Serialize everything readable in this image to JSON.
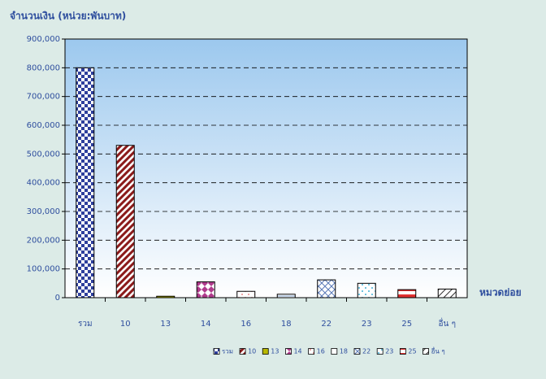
{
  "chart_data": {
    "type": "bar",
    "y_axis_label": "จำนวนเงิน (หน่วย:พันบาท)",
    "x_axis_label": "หมวดย่อย",
    "categories": [
      "รวม",
      "10",
      "13",
      "14",
      "16",
      "18",
      "22",
      "23",
      "25",
      "อื่น ๆ"
    ],
    "values": [
      800000,
      530000,
      5000,
      55000,
      22000,
      12000,
      62000,
      50000,
      28000,
      30000
    ],
    "colors": [
      "#2e3f9c",
      "#8b1a1a",
      "#b8b800",
      "#b03a8c",
      "#e88a8a",
      "#7fa3cc",
      "#5a7ab8",
      "#3fb0d6",
      "#e03030",
      "#333333"
    ],
    "ylim": [
      0,
      900000
    ],
    "yticks": [
      0,
      {
        "value": 100000,
        "label": "100,000"
      },
      {
        "value": 200000,
        "label": "200,000"
      },
      {
        "value": 300000,
        "label": "300,000"
      },
      {
        "value": 400000,
        "label": "400,000"
      },
      {
        "value": 500000,
        "label": "500,000"
      },
      {
        "value": 600000,
        "label": "600,000"
      },
      {
        "value": 700000,
        "label": "700,000"
      },
      {
        "value": 800000,
        "label": "800,000"
      },
      {
        "value": 900000,
        "label": "900,000"
      }
    ],
    "grid": true,
    "legend": "bottom"
  }
}
